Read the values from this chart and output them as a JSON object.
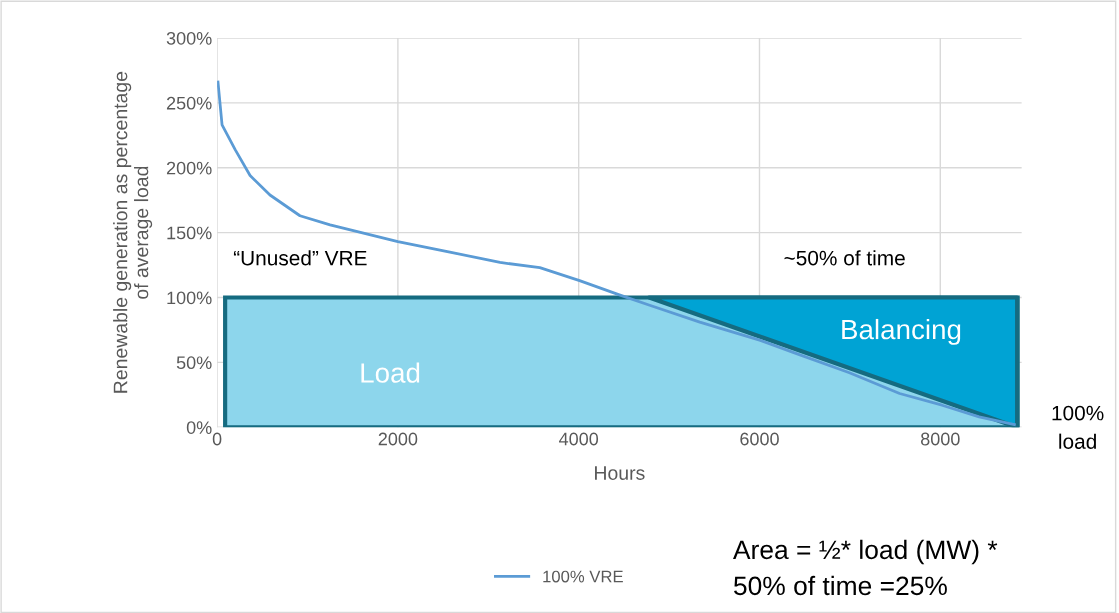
{
  "chart_data": {
    "type": "line",
    "xlabel": "Hours",
    "ylabel": "Renewable generation as percentage\nof average load",
    "xlim": [
      0,
      8900
    ],
    "xticks": [
      0,
      2000,
      4000,
      6000,
      8000
    ],
    "ylim": [
      0,
      300
    ],
    "yticks": [
      {
        "value": 0,
        "label": "0%"
      },
      {
        "value": 50,
        "label": "50%"
      },
      {
        "value": 100,
        "label": "100%"
      },
      {
        "value": 150,
        "label": "150%"
      },
      {
        "value": 200,
        "label": "200%"
      },
      {
        "value": 250,
        "label": "250%"
      },
      {
        "value": 300,
        "label": "300%"
      }
    ],
    "grid": true,
    "legend": "bottom",
    "bands": [
      {
        "axis": "y",
        "from": 0,
        "to": 100,
        "label": "Load",
        "color": "#8dd6ec"
      }
    ],
    "series": [
      {
        "type": "area",
        "color": "#00a3d4",
        "x": [
          4780,
          8850,
          8850
        ],
        "values": [
          100,
          100,
          0
        ]
      },
      {
        "name": "100% VRE",
        "color": "#5b9bd5",
        "x": [
          10,
          55,
          200,
          365,
          585,
          917,
          1250,
          2000,
          2575,
          3130,
          3570,
          4010,
          4450,
          4785,
          5340,
          6010,
          6440,
          6995,
          7550,
          8020,
          8430,
          8820
        ],
        "values": [
          266,
          233,
          214,
          194,
          179,
          163,
          156,
          143,
          135,
          127,
          123,
          113,
          102,
          94,
          81,
          67,
          56,
          42,
          26,
          17,
          8,
          2
        ]
      }
    ],
    "annotations": [
      "“Unused” VRE",
      "~50% of time",
      "Balancing",
      "100%\nload",
      "Area = ½* load (MW) *\n50% of time =25%"
    ]
  }
}
